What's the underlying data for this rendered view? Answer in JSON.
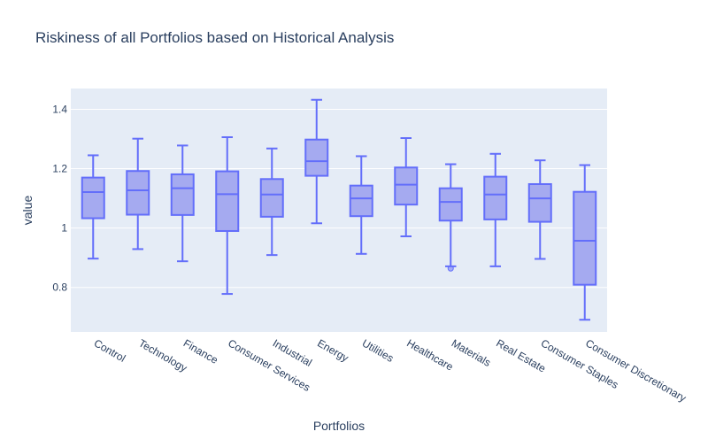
{
  "chart_data": {
    "type": "box",
    "title": "Riskiness of all Portfolios based on Historical Analysis",
    "xlabel": "Portfolios",
    "ylabel": "value",
    "ylim": [
      0.65,
      1.47
    ],
    "yticks": [
      0.8,
      1,
      1.2,
      1.4
    ],
    "ytick_labels": [
      "0.8",
      "1",
      "1.2",
      "1.4"
    ],
    "grid": true,
    "legend": "none",
    "colors": {
      "plot_bg": "#e5ecf6",
      "grid": "#ffffff",
      "box_line": "#636efa",
      "box_fill": "#a5aaf0",
      "text": "#2a3f5f"
    },
    "categories": [
      "Control",
      "Technology",
      "Finance",
      "Consumer Services",
      "Industrial",
      "Energy",
      "Utilities",
      "Healthcare",
      "Materials",
      "Real Estate",
      "Consumer Staples",
      "Consumer Discretionary"
    ],
    "boxes": [
      {
        "min": 0.897,
        "q1": 1.033,
        "median": 1.121,
        "q3": 1.17,
        "max": 1.245,
        "outliers": []
      },
      {
        "min": 0.929,
        "q1": 1.045,
        "median": 1.127,
        "q3": 1.192,
        "max": 1.301,
        "outliers": []
      },
      {
        "min": 0.888,
        "q1": 1.044,
        "median": 1.134,
        "q3": 1.181,
        "max": 1.278,
        "outliers": []
      },
      {
        "min": 0.778,
        "q1": 0.99,
        "median": 1.114,
        "q3": 1.191,
        "max": 1.306,
        "outliers": []
      },
      {
        "min": 0.909,
        "q1": 1.038,
        "median": 1.113,
        "q3": 1.165,
        "max": 1.268,
        "outliers": []
      },
      {
        "min": 1.016,
        "q1": 1.176,
        "median": 1.225,
        "q3": 1.298,
        "max": 1.432,
        "outliers": []
      },
      {
        "min": 0.913,
        "q1": 1.04,
        "median": 1.1,
        "q3": 1.143,
        "max": 1.242,
        "outliers": []
      },
      {
        "min": 0.972,
        "q1": 1.079,
        "median": 1.146,
        "q3": 1.204,
        "max": 1.303,
        "outliers": []
      },
      {
        "min": 0.871,
        "q1": 1.025,
        "median": 1.088,
        "q3": 1.134,
        "max": 1.215,
        "outliers": [
          0.864
        ]
      },
      {
        "min": 0.871,
        "q1": 1.029,
        "median": 1.113,
        "q3": 1.173,
        "max": 1.25,
        "outliers": []
      },
      {
        "min": 0.896,
        "q1": 1.021,
        "median": 1.1,
        "q3": 1.148,
        "max": 1.228,
        "outliers": []
      },
      {
        "min": 0.691,
        "q1": 0.809,
        "median": 0.957,
        "q3": 1.122,
        "max": 1.212,
        "outliers": []
      }
    ]
  }
}
